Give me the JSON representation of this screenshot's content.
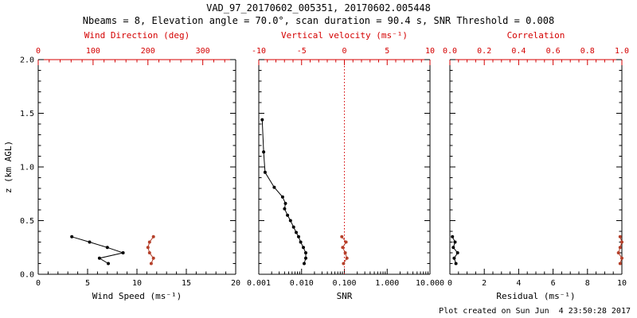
{
  "header": {
    "title": "VAD_97_20170602_005351, 20170602.005448",
    "subtitle": "Nbeams = 8, Elevation angle = 70.0°, scan duration = 90.4 s, SNR Threshold = 0.008"
  },
  "footer": {
    "created": "Plot created on Sun Jun  4 23:50:28 2017"
  },
  "colors": {
    "axis_black": "#000000",
    "axis_red": "#d40000",
    "series_black": "#000000",
    "series_red": "#b5402a",
    "background": "#ffffff"
  },
  "yaxis": {
    "label": "z (km AGL)",
    "lim": [
      0,
      2
    ],
    "tick_values": [
      0,
      0.5,
      1,
      1.5,
      2
    ],
    "tick_labels": [
      "0.0",
      "0.5",
      "1.0",
      "1.5",
      "2.0"
    ]
  },
  "chart_data": [
    {
      "type": "line",
      "name": "wind",
      "bottom_axis": {
        "title": "Wind Speed (ms⁻¹)",
        "scale": "linear",
        "lim": [
          0,
          20
        ],
        "tick_values": [
          0,
          5,
          10,
          15,
          20
        ],
        "tick_labels": [
          "0",
          "5",
          "10",
          "15",
          "20"
        ]
      },
      "top_axis": {
        "title": "Wind Direction (deg)",
        "scale": "linear",
        "lim": [
          0,
          360
        ],
        "tick_values": [
          0,
          100,
          200,
          300
        ],
        "tick_labels": [
          "0",
          "100",
          "200",
          "300"
        ]
      },
      "series": [
        {
          "name": "wind-speed",
          "axis": "bottom",
          "color_key": "series_black",
          "points": [
            [
              3.4,
              0.35
            ],
            [
              5.2,
              0.3
            ],
            [
              7.0,
              0.25
            ],
            [
              8.6,
              0.2
            ],
            [
              6.2,
              0.15
            ],
            [
              7.1,
              0.1
            ]
          ]
        },
        {
          "name": "wind-direction",
          "axis": "top",
          "color_key": "series_red",
          "points": [
            [
              210,
              0.35
            ],
            [
              203,
              0.3
            ],
            [
              200,
              0.25
            ],
            [
              203,
              0.2
            ],
            [
              210,
              0.15
            ],
            [
              206,
              0.1
            ]
          ]
        }
      ]
    },
    {
      "type": "line",
      "name": "snr",
      "bottom_axis": {
        "title": "SNR",
        "scale": "log",
        "lim": [
          0.001,
          10
        ],
        "tick_values": [
          0.001,
          0.01,
          0.1,
          1,
          10
        ],
        "tick_labels": [
          "0.001",
          "0.010",
          "0.100",
          "1.000",
          "10.000"
        ]
      },
      "top_axis": {
        "title": "Vertical velocity (ms⁻¹)",
        "scale": "linear",
        "lim": [
          -10,
          10
        ],
        "tick_values": [
          -10,
          -5,
          0,
          5,
          10
        ],
        "tick_labels": [
          "-10",
          "-5",
          "0",
          "5",
          "10"
        ]
      },
      "ref_line": {
        "axis": "top",
        "value": 0,
        "color_key": "axis_red",
        "style": "dotted"
      },
      "series": [
        {
          "name": "snr-profile",
          "axis": "bottom",
          "color_key": "series_black",
          "points": [
            [
              0.0012,
              1.44
            ],
            [
              0.0013,
              1.14
            ],
            [
              0.0014,
              0.95
            ],
            [
              0.0023,
              0.81
            ],
            [
              0.0036,
              0.72
            ],
            [
              0.0042,
              0.66
            ],
            [
              0.004,
              0.61
            ],
            [
              0.0047,
              0.55
            ],
            [
              0.0055,
              0.5
            ],
            [
              0.0065,
              0.44
            ],
            [
              0.0075,
              0.39
            ],
            [
              0.0085,
              0.35
            ],
            [
              0.0095,
              0.3
            ],
            [
              0.011,
              0.25
            ],
            [
              0.0125,
              0.2
            ],
            [
              0.0125,
              0.15
            ],
            [
              0.0115,
              0.1
            ]
          ]
        },
        {
          "name": "vertical-velocity",
          "axis": "top",
          "color_key": "series_red",
          "points": [
            [
              -0.3,
              0.35
            ],
            [
              0.2,
              0.3
            ],
            [
              -0.2,
              0.25
            ],
            [
              0.1,
              0.2
            ],
            [
              0.3,
              0.15
            ],
            [
              -0.1,
              0.1
            ]
          ]
        }
      ]
    },
    {
      "type": "line",
      "name": "residual",
      "bottom_axis": {
        "title": "Residual (ms⁻¹)",
        "scale": "linear",
        "lim": [
          0,
          10
        ],
        "tick_values": [
          0,
          2,
          4,
          6,
          8,
          10
        ],
        "tick_labels": [
          "0",
          "2",
          "4",
          "6",
          "8",
          "10"
        ]
      },
      "top_axis": {
        "title": "Correlation",
        "scale": "linear",
        "lim": [
          0,
          1
        ],
        "tick_values": [
          0,
          0.2,
          0.4,
          0.6,
          0.8,
          1
        ],
        "tick_labels": [
          "0.0",
          "0.2",
          "0.4",
          "0.6",
          "0.8",
          "1.0"
        ]
      },
      "series": [
        {
          "name": "residual-profile",
          "axis": "bottom",
          "color_key": "series_black",
          "points": [
            [
              0.15,
              0.35
            ],
            [
              0.3,
              0.3
            ],
            [
              0.2,
              0.25
            ],
            [
              0.45,
              0.2
            ],
            [
              0.25,
              0.15
            ],
            [
              0.35,
              0.1
            ]
          ]
        },
        {
          "name": "correlation",
          "axis": "top",
          "color_key": "series_red",
          "points": [
            [
              0.99,
              0.35
            ],
            [
              1.0,
              0.3
            ],
            [
              0.99,
              0.25
            ],
            [
              0.98,
              0.2
            ],
            [
              1.0,
              0.15
            ],
            [
              0.99,
              0.1
            ]
          ]
        }
      ]
    }
  ]
}
